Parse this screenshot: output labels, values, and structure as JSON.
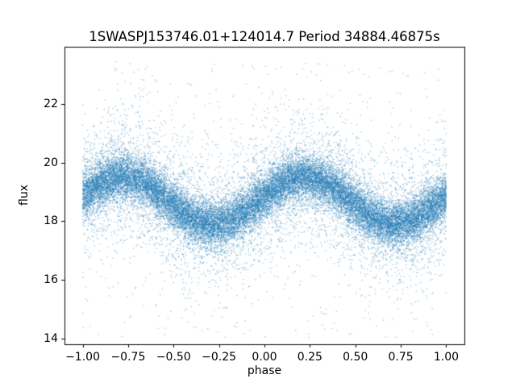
{
  "chart_data": {
    "type": "scatter",
    "title": "1SWASPJ153746.01+124014.7 Period 34884.46875s",
    "xlabel": "phase",
    "ylabel": "flux",
    "xlim": [
      -1.1,
      1.1
    ],
    "ylim": [
      13.8,
      23.95
    ],
    "xticks": [
      -1.0,
      -0.75,
      -0.5,
      -0.25,
      0.0,
      0.25,
      0.5,
      0.75,
      1.0
    ],
    "xtick_labels": [
      "−1.00",
      "−0.75",
      "−0.50",
      "−0.25",
      "0.00",
      "0.25",
      "0.50",
      "0.75",
      "1.00"
    ],
    "yticks": [
      14,
      16,
      18,
      20,
      22
    ],
    "ytick_labels": [
      "14",
      "16",
      "18",
      "20",
      "22"
    ],
    "grid": false,
    "legend_position": "none",
    "marker_color": "#1f77b4",
    "marker_alpha": 0.45,
    "marker_size_px": 1.3,
    "series_model": {
      "description": "phase-folded light curve scatter: flux = mean_flux + amplitude*cos(2*pi*(phase - phase_of_max)) + noise; crests near phase -0.78 and +0.22, troughs near -0.28 and +0.72",
      "n_points": 30000,
      "phase_range": [
        -1.0,
        1.0
      ],
      "mean_flux": 18.7,
      "amplitude": 0.8,
      "phase_of_max": 0.22,
      "core_noise_sigma": 0.38,
      "core_fraction": 0.78,
      "tail_noise_sigma": 1.15,
      "outlier_fraction": 0.018,
      "outlier_flux_range": [
        14.0,
        23.4
      ],
      "seed": 12345
    }
  }
}
